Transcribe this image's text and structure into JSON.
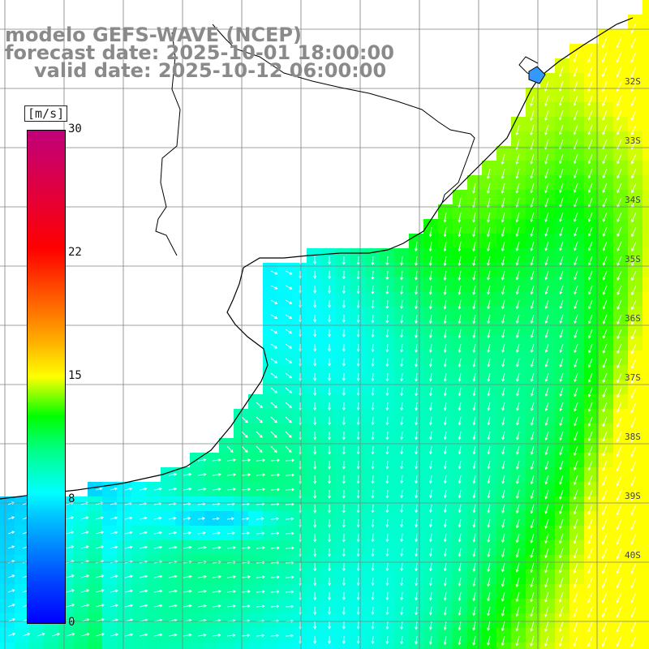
{
  "title": {
    "line1": "modelo GEFS-WAVE (NCEP)",
    "line2": "forecast date: 2025-10-01 18:00:00",
    "line3": "valid date: 2025-10-12 06:00:00"
  },
  "colorbar": {
    "unit": "[m/s]",
    "min": 0,
    "max": 30,
    "ticks": [
      "30",
      "22",
      "15",
      "8",
      "0"
    ],
    "colors": [
      "#0000ff",
      "#00c8ff",
      "#00ffff",
      "#00ff00",
      "#ffff00",
      "#ff6400",
      "#ff0000",
      "#c0007a"
    ]
  },
  "lat_labels": [
    "32S",
    "33S",
    "34S",
    "35S",
    "36S",
    "37S",
    "38S",
    "39S",
    "40S"
  ],
  "colors": {
    "land": "#ffffff",
    "coastline": "#000000",
    "grid": "#808080",
    "arrows": "#ffffff"
  }
}
